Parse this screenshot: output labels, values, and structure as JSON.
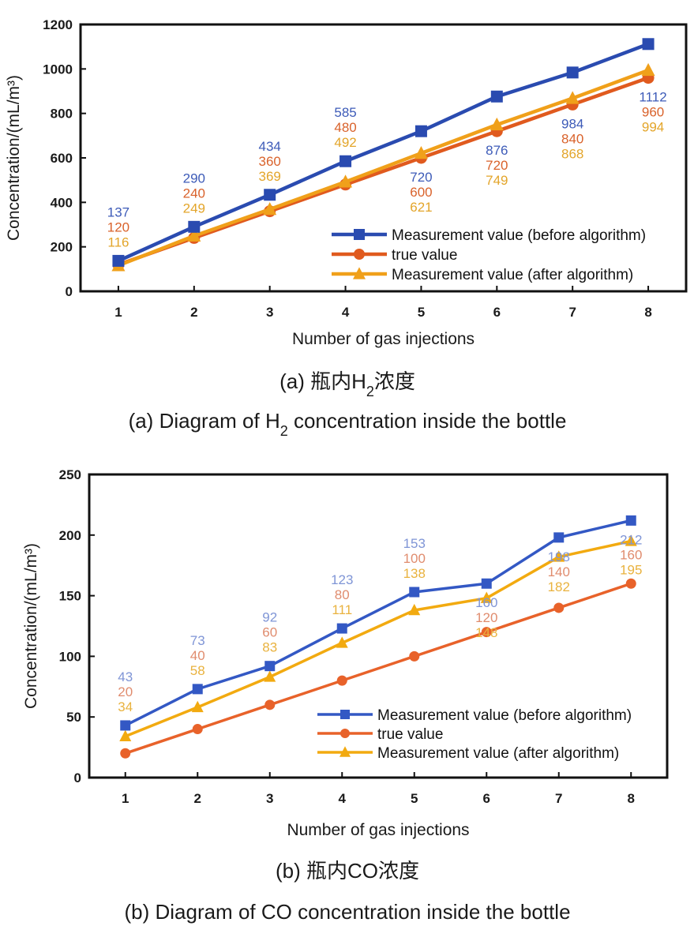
{
  "chart_data": [
    {
      "type": "line",
      "id": "h2",
      "title": "",
      "xlabel": "Number of gas injections",
      "ylabel": "Concentration/(mL/m³)",
      "x": [
        1,
        2,
        3,
        4,
        5,
        6,
        7,
        8
      ],
      "xticks": [
        "1",
        "2",
        "3",
        "4",
        "5",
        "6",
        "7",
        "8"
      ],
      "xlim": [
        0.5,
        8.5
      ],
      "ylim": [
        0,
        1200
      ],
      "yticks": [
        0,
        200,
        400,
        600,
        800,
        1000,
        1200
      ],
      "grid": false,
      "legend_position": "bottom-right",
      "series": [
        {
          "name": "Measurement value (before algorithm)",
          "marker": "square",
          "color": "#2a4bb0",
          "label_color": "#3d5bb8",
          "values": [
            137,
            290,
            434,
            585,
            720,
            876,
            984,
            1112
          ]
        },
        {
          "name": "true value",
          "marker": "circle",
          "color": "#e05a1e",
          "label_color": "#d9622b",
          "values": [
            120,
            240,
            360,
            480,
            600,
            720,
            840,
            960
          ]
        },
        {
          "name": "Measurement value (after algorithm)",
          "marker": "triangle",
          "color": "#f0a01a",
          "label_color": "#e3a52a",
          "values": [
            116,
            249,
            369,
            492,
            621,
            749,
            868,
            994
          ]
        }
      ],
      "caption_cn": [
        "(a) 瓶内H",
        "2",
        "浓度"
      ],
      "caption_en": [
        "(a) Diagram of H",
        "2",
        " concentration inside the bottle"
      ]
    },
    {
      "type": "line",
      "id": "co",
      "title": "",
      "xlabel": "Number of gas injections",
      "ylabel": "Concentration/(mL/m³)",
      "x": [
        1,
        2,
        3,
        4,
        5,
        6,
        7,
        8
      ],
      "xticks": [
        "1",
        "2",
        "3",
        "4",
        "5",
        "6",
        "7",
        "8"
      ],
      "xlim": [
        0.5,
        8.5
      ],
      "ylim": [
        0,
        250
      ],
      "yticks": [
        0,
        50,
        100,
        150,
        200,
        250
      ],
      "grid": false,
      "legend_position": "bottom-right",
      "series": [
        {
          "name": "Measurement value (before algorithm)",
          "marker": "square",
          "color": "#3358c4",
          "label_color": "#7f95d6",
          "values": [
            43,
            73,
            92,
            123,
            153,
            160,
            198,
            212
          ]
        },
        {
          "name": "true value",
          "marker": "circle",
          "color": "#e8622a",
          "label_color": "#e08c6e",
          "values": [
            20,
            40,
            60,
            80,
            100,
            120,
            140,
            160
          ]
        },
        {
          "name": "Measurement value (after algorithm)",
          "marker": "triangle",
          "color": "#f2aa10",
          "label_color": "#e9b23e",
          "values": [
            34,
            58,
            83,
            111,
            138,
            148,
            182,
            195
          ]
        }
      ],
      "caption_cn": [
        "(b) 瓶内CO浓度"
      ],
      "caption_en": [
        "(b) Diagram of CO concentration inside the bottle"
      ]
    }
  ]
}
